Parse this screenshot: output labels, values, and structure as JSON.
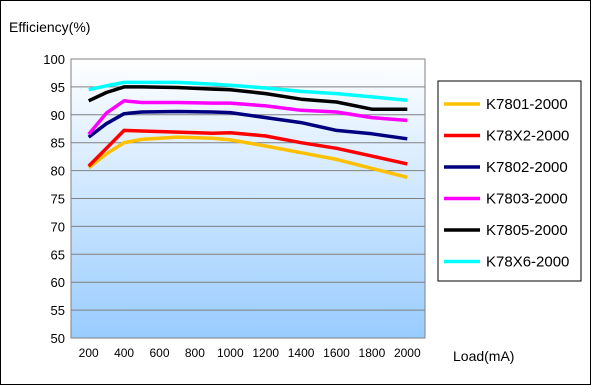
{
  "chart_data": {
    "type": "line",
    "ylabel": "Efficiency(%)",
    "xlabel": "Load(mA)",
    "xlim": [
      100,
      2100
    ],
    "ylim": [
      50,
      100
    ],
    "xticks": [
      200,
      400,
      600,
      800,
      1000,
      1200,
      1400,
      1600,
      1800,
      2000
    ],
    "yticks": [
      50,
      55,
      60,
      65,
      70,
      75,
      80,
      85,
      90,
      95,
      100
    ],
    "legend_position": "right",
    "background": "gradient-blue",
    "series": [
      {
        "name": "K7801-2000",
        "color": "#ffc000",
        "x": [
          200,
          300,
          400,
          500,
          700,
          900,
          1000,
          1200,
          1400,
          1600,
          1800,
          2000
        ],
        "y": [
          80.5,
          83.0,
          85.0,
          85.6,
          86.0,
          85.8,
          85.5,
          84.4,
          83.2,
          82.0,
          80.4,
          78.8
        ]
      },
      {
        "name": "K78X2-2000",
        "color": "#ff0000",
        "x": [
          200,
          300,
          400,
          500,
          700,
          900,
          1000,
          1200,
          1400,
          1600,
          1800,
          2000
        ],
        "y": [
          80.8,
          84.0,
          87.2,
          87.1,
          86.9,
          86.7,
          86.8,
          86.2,
          85.0,
          84.0,
          82.6,
          81.2
        ]
      },
      {
        "name": "K7802-2000",
        "color": "#00007f",
        "x": [
          200,
          300,
          400,
          500,
          700,
          900,
          1000,
          1200,
          1400,
          1600,
          1800,
          2000
        ],
        "y": [
          86.0,
          88.4,
          90.2,
          90.5,
          90.6,
          90.5,
          90.4,
          89.5,
          88.6,
          87.2,
          86.6,
          85.7
        ]
      },
      {
        "name": "K7803-2000",
        "color": "#ff00ff",
        "x": [
          200,
          300,
          400,
          500,
          700,
          900,
          1000,
          1200,
          1400,
          1600,
          1800,
          2000
        ],
        "y": [
          86.5,
          90.3,
          92.5,
          92.2,
          92.2,
          92.1,
          92.1,
          91.6,
          90.8,
          90.5,
          89.5,
          89.0
        ]
      },
      {
        "name": "K7805-2000",
        "color": "#000000",
        "x": [
          200,
          300,
          400,
          500,
          700,
          900,
          1000,
          1200,
          1400,
          1600,
          1800,
          2000
        ],
        "y": [
          92.5,
          94.0,
          95.0,
          95.0,
          94.9,
          94.6,
          94.5,
          93.8,
          92.8,
          92.3,
          91.0,
          91.0
        ]
      },
      {
        "name": "K78X6-2000",
        "color": "#00ffff",
        "x": [
          200,
          300,
          400,
          500,
          700,
          900,
          1000,
          1200,
          1400,
          1600,
          1800,
          2000
        ],
        "y": [
          94.5,
          95.2,
          95.8,
          95.8,
          95.8,
          95.5,
          95.3,
          94.8,
          94.2,
          93.8,
          93.2,
          92.6
        ]
      }
    ]
  }
}
